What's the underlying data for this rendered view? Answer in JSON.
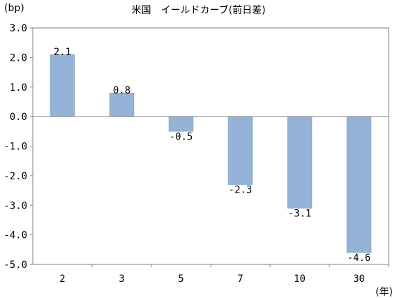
{
  "chart_data": {
    "type": "bar",
    "title": "米国　イールドカーブ(前日差)",
    "y_unit_label": "(bp)",
    "x_unit_label": "(年)",
    "categories": [
      "2",
      "3",
      "5",
      "7",
      "10",
      "30"
    ],
    "values": [
      2.1,
      0.8,
      -0.5,
      -2.3,
      -3.1,
      -4.6
    ],
    "value_labels": [
      "2.1",
      "0.8",
      "-0.5",
      "-2.3",
      "-3.1",
      "-4.6"
    ],
    "ylim": [
      -5.0,
      3.0
    ],
    "yticks": [
      "3.0",
      "2.0",
      "1.0",
      "0.0",
      "-1.0",
      "-2.0",
      "-3.0",
      "-4.0",
      "-5.0"
    ],
    "grid": false,
    "legend": "none",
    "colors": {
      "bar": "#95b3d7",
      "bar_edge": "#7f9fc7",
      "axis": "#808080"
    }
  }
}
